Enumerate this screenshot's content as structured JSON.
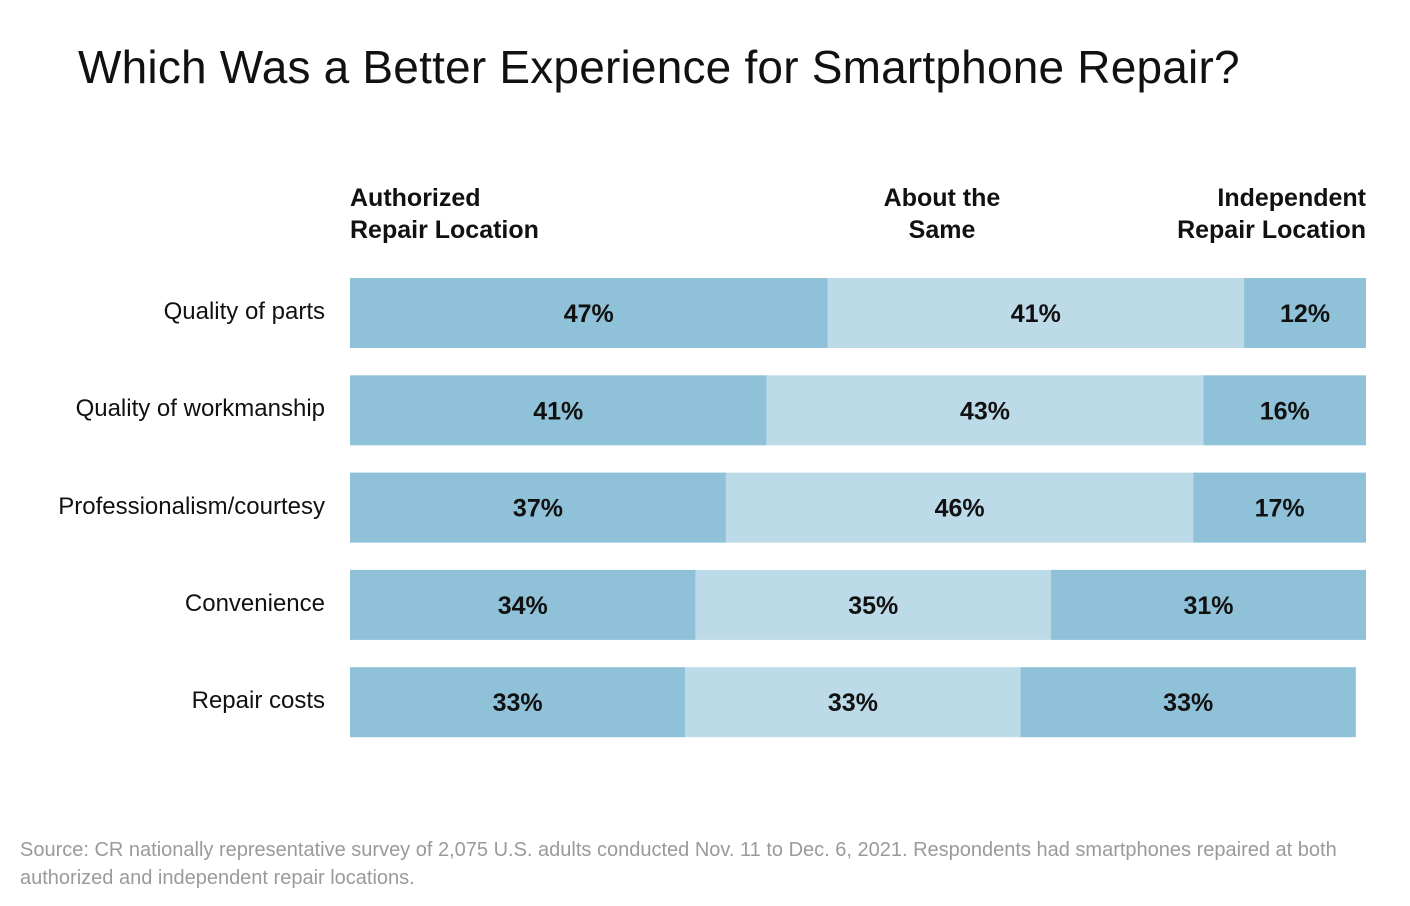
{
  "chart_data": {
    "type": "bar",
    "orientation": "horizontal",
    "stacked": true,
    "title": "Which Was a Better Experience for Smartphone Repair?",
    "categories": [
      "Quality of parts",
      "Quality of workmanship",
      "Professionalism/courtesy",
      "Convenience",
      "Repair costs"
    ],
    "series": [
      {
        "name": "Authorized Repair Location",
        "name_lines": [
          "Authorized",
          "Repair Location"
        ],
        "values": [
          47,
          41,
          37,
          34,
          33
        ],
        "color": "#8fc1d9",
        "value_labels": [
          "47%",
          "41%",
          "37%",
          "34%",
          "33%"
        ]
      },
      {
        "name": "About the Same",
        "name_lines": [
          "About the",
          "Same"
        ],
        "values": [
          41,
          43,
          46,
          35,
          33
        ],
        "color": "#bcdae7",
        "value_labels": [
          "41%",
          "43%",
          "46%",
          "35%",
          "33%"
        ]
      },
      {
        "name": "Independent Repair Location",
        "name_lines": [
          "Independent",
          "Repair Location"
        ],
        "values": [
          12,
          16,
          17,
          31,
          33
        ],
        "color": "#8fc1d9",
        "value_labels": [
          "12%",
          "16%",
          "17%",
          "31%",
          "33%"
        ]
      }
    ],
    "xlim": [
      0,
      100
    ],
    "grid": false,
    "legend": "top",
    "source": "Source: CR nationally representative survey of 2,075 U.S. adults conducted Nov. 11 to Dec. 6, 2021. Respondents had smartphones repaired at both authorized and independent repair locations."
  }
}
